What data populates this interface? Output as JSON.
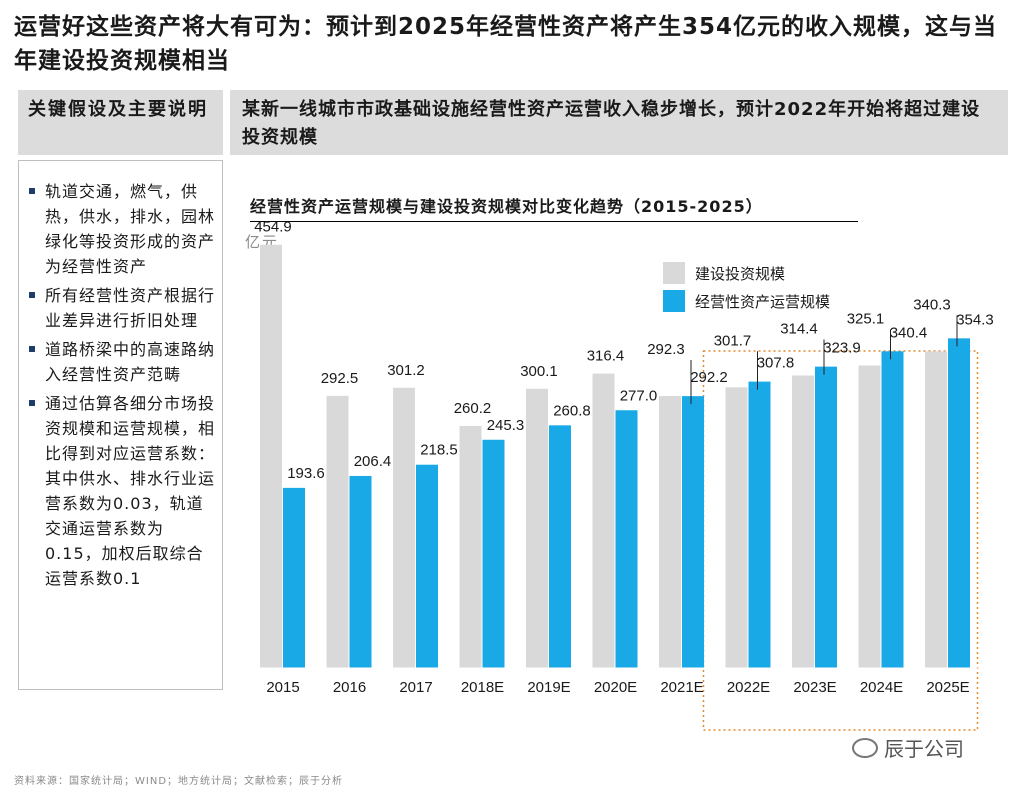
{
  "page": {
    "title": "运营好这些资产将大有可为：预计到2025年经营性资产将产生354亿元的收入规模，这与当年建设投资规模相当",
    "left_header": "关键假设及主要说明",
    "right_header": "某新一线城市市政基础设施经营性资产运营收入稳步增长，预计2022年开始将超过建设投资规模",
    "bullets": [
      "轨道交通，燃气，供热，供水，排水，园林绿化等投资形成的资产为经营性资产",
      "所有经营性资产根据行业差异进行折旧处理",
      "道路桥梁中的高速路纳入经营性资产范畴",
      "通过估算各细分市场投资规模和运营规模，相比得到对应运营系数：其中供水、排水行业运营系数为0.03，轨道交通运营系数为0.15，加权后取综合运营系数0.1"
    ],
    "source": "资料来源：国家统计局；WIND；地方统计局；文献检索；辰于分析",
    "watermark": "辰于公司",
    "colors": {
      "construction": "#d9d9d9",
      "operation": "#19a9e6",
      "highlight_box": "#e08a2e"
    }
  },
  "chart_data": {
    "type": "bar",
    "title": "经营性资产运营规模与建设投资规模对比变化趋势（2015-2025）",
    "unit": "亿元",
    "categories": [
      "2015",
      "2016",
      "2017",
      "2018E",
      "2019E",
      "2020E",
      "2021E",
      "2022E",
      "2023E",
      "2024E",
      "2025E"
    ],
    "series": [
      {
        "name": "建设投资规模",
        "values": [
          454.9,
          292.5,
          301.2,
          260.2,
          300.1,
          316.4,
          292.3,
          301.7,
          314.4,
          325.1,
          340.3
        ]
      },
      {
        "name": "经营性资产运营规模",
        "values": [
          193.6,
          206.4,
          218.5,
          245.3,
          260.8,
          277.0,
          292.2,
          307.8,
          323.9,
          340.4,
          354.3
        ]
      }
    ],
    "ylim": [
      0,
      460
    ],
    "legend_position": "top-right",
    "highlight_categories": [
      "2022E",
      "2023E",
      "2024E",
      "2025E"
    ],
    "grid": false
  }
}
